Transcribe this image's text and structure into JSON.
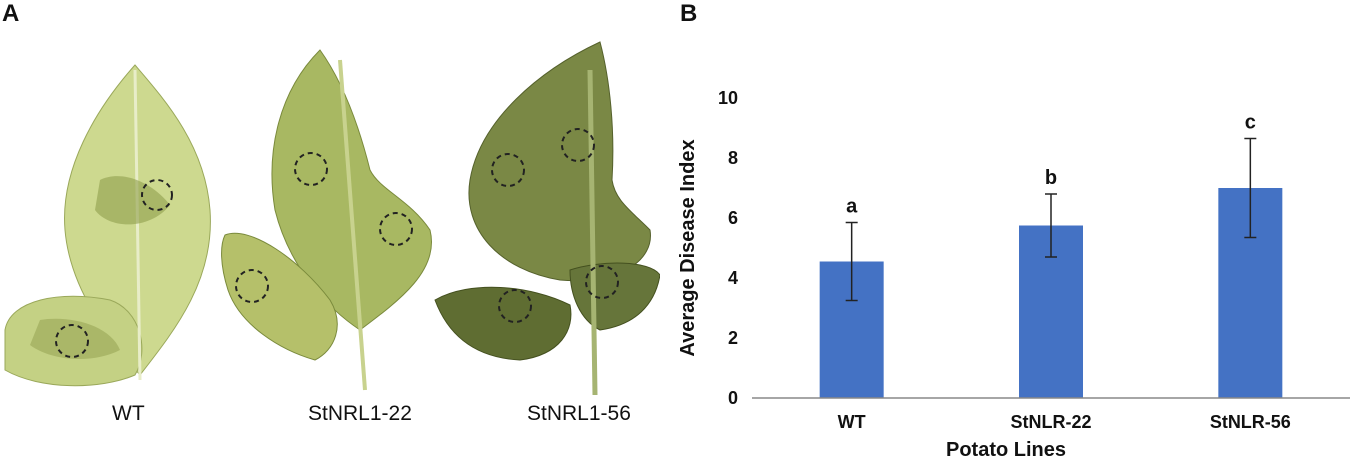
{
  "panel_a": {
    "label": "A",
    "leaves": [
      {
        "caption": "WT",
        "color": "#c7d48a"
      },
      {
        "caption": "StNRL1-22",
        "color": "#a8b85c"
      },
      {
        "caption": "StNRL1-56",
        "color": "#6f7d3e"
      }
    ]
  },
  "panel_b": {
    "label": "B"
  },
  "chart_data": {
    "type": "bar",
    "categories": [
      "WT",
      "StNLR-22",
      "StNLR-56"
    ],
    "values": [
      4.55,
      5.75,
      7.0
    ],
    "error": [
      1.3,
      1.05,
      1.65
    ],
    "significance": [
      "a",
      "b",
      "c"
    ],
    "xlabel": "Potato Lines",
    "ylabel": "Average Disease Index",
    "ylim": [
      0,
      10
    ],
    "yticks": [
      "0",
      "2",
      "4",
      "6",
      "8",
      "10"
    ],
    "bar_color": "#4472c4",
    "grid": false
  }
}
